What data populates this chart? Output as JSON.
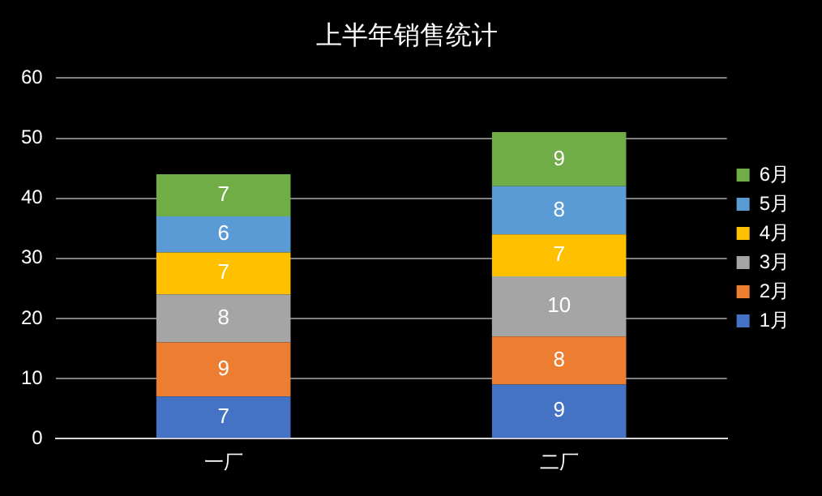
{
  "chart_data": {
    "type": "bar",
    "title": "上半年销售统计",
    "categories": [
      "一厂",
      "二厂"
    ],
    "stacked": true,
    "series": [
      {
        "name": "1月",
        "color": "#4472c4",
        "values": [
          7,
          9
        ]
      },
      {
        "name": "2月",
        "color": "#ed7d31",
        "values": [
          9,
          8
        ]
      },
      {
        "name": "3月",
        "color": "#a5a5a5",
        "values": [
          8,
          10
        ]
      },
      {
        "name": "4月",
        "color": "#ffc000",
        "values": [
          7,
          7
        ]
      },
      {
        "name": "5月",
        "color": "#5b9bd5",
        "values": [
          6,
          8
        ]
      },
      {
        "name": "6月",
        "color": "#70ad47",
        "values": [
          7,
          9
        ]
      }
    ],
    "ylim": [
      0,
      60
    ],
    "yticks": [
      0,
      10,
      20,
      30,
      40,
      50,
      60
    ],
    "grid": "y",
    "legend": "right",
    "data_labels": true
  }
}
